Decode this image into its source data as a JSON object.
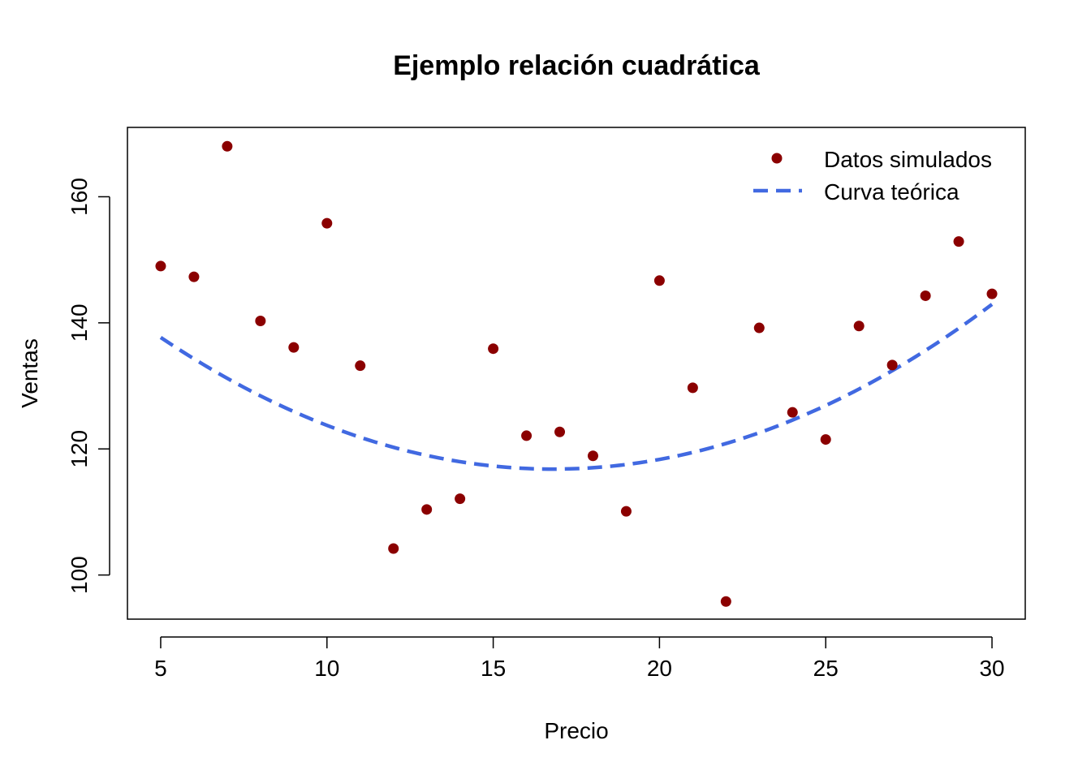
{
  "chart_data": {
    "type": "scatter",
    "title": "Ejemplo relación cuadrática",
    "xlabel": "Precio",
    "ylabel": "Ventas",
    "xlim": [
      4,
      31
    ],
    "ylim": [
      93,
      171
    ],
    "xticks": [
      5,
      10,
      15,
      20,
      25,
      30
    ],
    "yticks": [
      100,
      120,
      140,
      160
    ],
    "grid": false,
    "legend_position": "top-right",
    "series": [
      {
        "name": "Datos simulados",
        "kind": "points",
        "color": "#8B0000",
        "x": [
          5,
          6,
          7,
          8,
          9,
          10,
          11,
          12,
          13,
          14,
          15,
          16,
          17,
          18,
          19,
          20,
          21,
          22,
          23,
          24,
          25,
          26,
          27,
          28,
          29,
          30
        ],
        "y": [
          149.0,
          147.3,
          168.0,
          140.3,
          136.1,
          155.8,
          133.2,
          104.2,
          110.4,
          112.1,
          135.9,
          122.1,
          122.7,
          118.9,
          110.1,
          146.7,
          129.7,
          95.8,
          139.2,
          125.8,
          121.5,
          139.5,
          133.3,
          144.3,
          152.9,
          144.6
        ]
      },
      {
        "name": "Curva teórica",
        "kind": "dashed-line",
        "color": "#4169E1",
        "formula": "0.15*(x-16.8)^2 + 116.8",
        "x_start": 5,
        "x_end": 30
      }
    ]
  }
}
